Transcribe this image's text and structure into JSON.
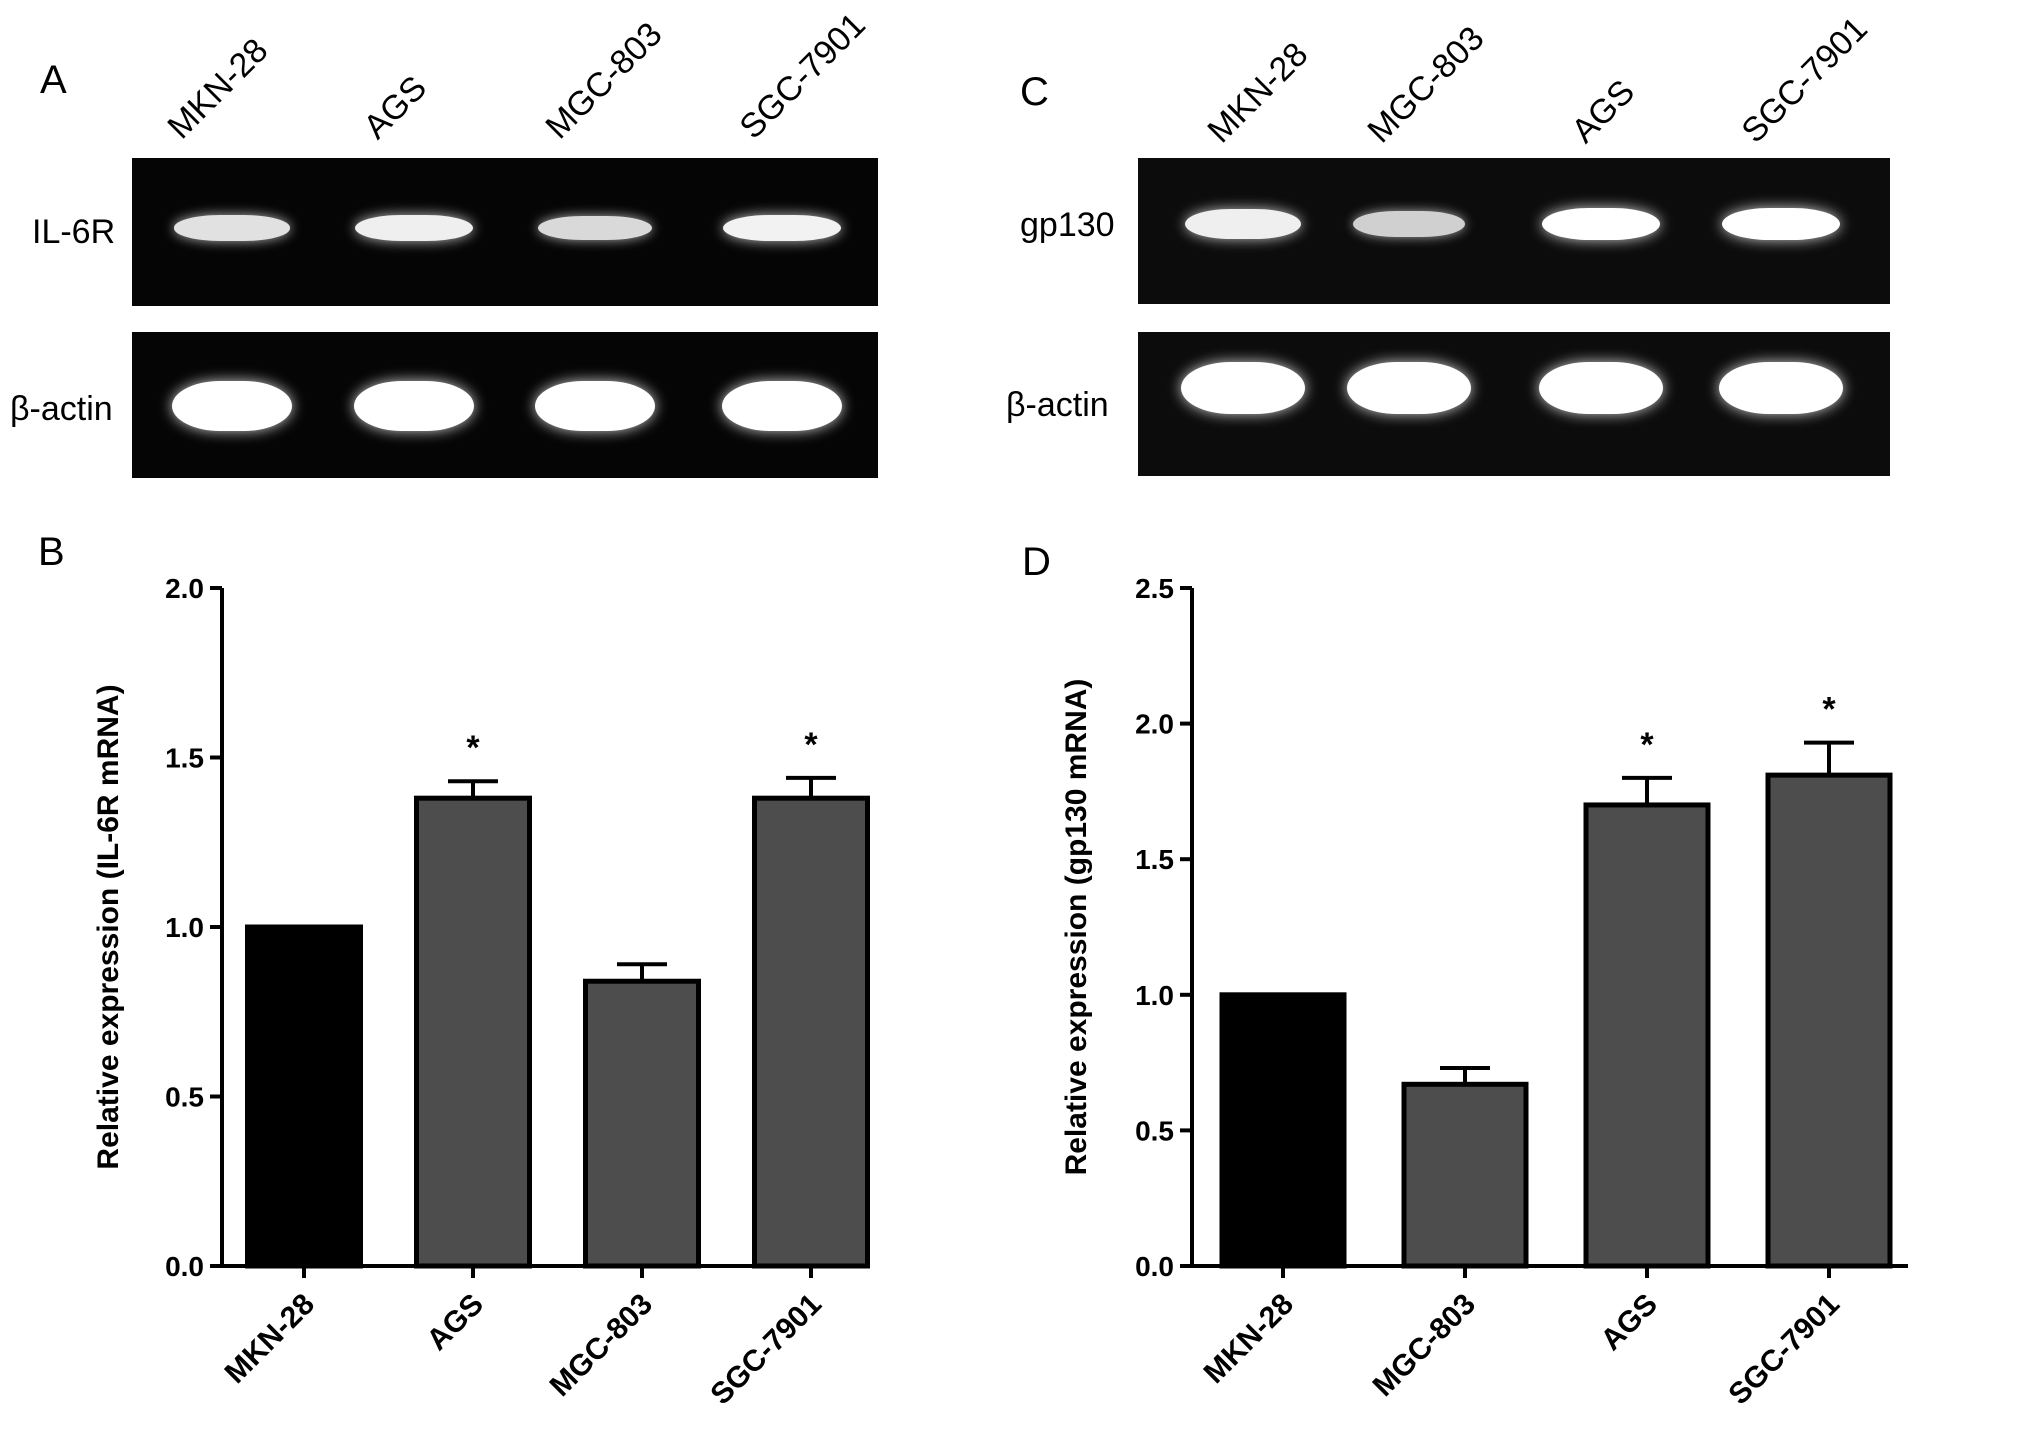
{
  "panels": {
    "A": {
      "letter": "A",
      "lanes": [
        "MKN-28",
        "AGS",
        "MGC-803",
        "SGC-7901"
      ],
      "rows": [
        {
          "label": "IL-6R",
          "bands": [
            0.78,
            0.88,
            0.72,
            0.9
          ]
        },
        {
          "label": "β-actin",
          "bands": [
            1.0,
            1.0,
            1.0,
            1.0
          ]
        }
      ]
    },
    "B": {
      "letter": "B"
    },
    "C": {
      "letter": "C",
      "lanes": [
        "MKN-28",
        "MGC-803",
        "AGS",
        "SGC-7901"
      ],
      "rows": [
        {
          "label": "gp130",
          "bands": [
            0.88,
            0.65,
            1.0,
            1.0
          ]
        },
        {
          "label": "β-actin",
          "bands": [
            1.0,
            1.0,
            1.0,
            1.0
          ]
        }
      ]
    },
    "D": {
      "letter": "D"
    }
  },
  "chart_data": [
    {
      "type": "bar",
      "panel": "B",
      "categories": [
        "MKN-28",
        "AGS",
        "MGC-803",
        "SGC-7901"
      ],
      "values": [
        1.0,
        1.38,
        0.84,
        1.38
      ],
      "errors": [
        0,
        0.05,
        0.05,
        0.06
      ],
      "significance": [
        "",
        "*",
        "",
        "*"
      ],
      "colors": [
        "#000000",
        "#4d4d4d",
        "#4d4d4d",
        "#4d4d4d"
      ],
      "ylabel": "Relative expression (IL-6R mRNA)",
      "ylim": [
        0,
        2.0
      ],
      "yticks": [
        "0.0",
        "0.5",
        "1.0",
        "1.5",
        "2.0"
      ],
      "grid": false
    },
    {
      "type": "bar",
      "panel": "D",
      "categories": [
        "MKN-28",
        "MGC-803",
        "AGS",
        "SGC-7901"
      ],
      "values": [
        1.0,
        0.67,
        1.7,
        1.81
      ],
      "errors": [
        0,
        0.06,
        0.1,
        0.12
      ],
      "significance": [
        "",
        "",
        "*",
        "*"
      ],
      "colors": [
        "#000000",
        "#4d4d4d",
        "#4d4d4d",
        "#4d4d4d"
      ],
      "ylabel": "Relative expression (gp130 mRNA)",
      "ylim": [
        0,
        2.5
      ],
      "yticks": [
        "0.0",
        "0.5",
        "1.0",
        "1.5",
        "2.0",
        "2.5"
      ],
      "grid": false
    }
  ]
}
